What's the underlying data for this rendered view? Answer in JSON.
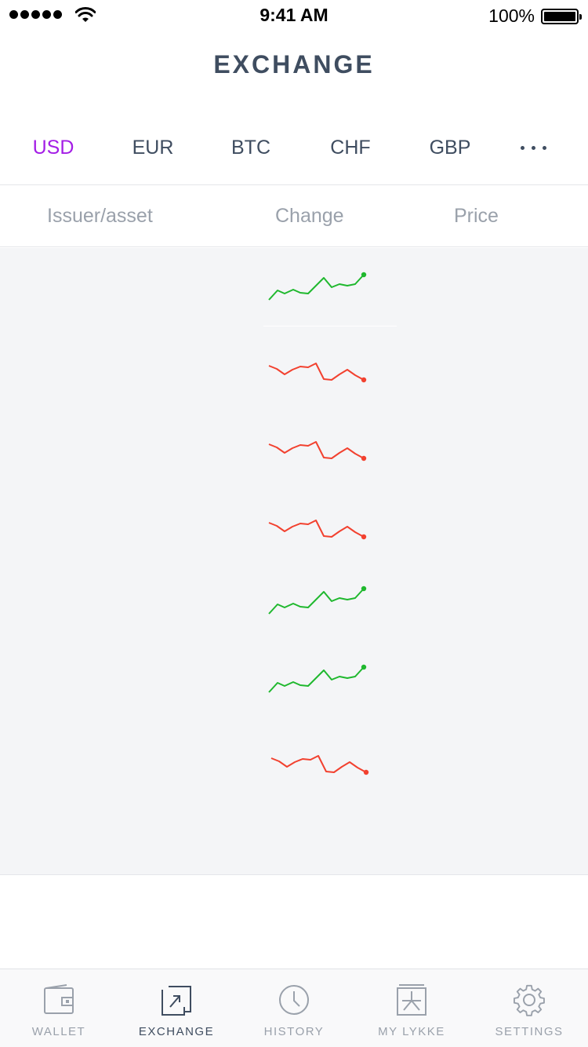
{
  "status_bar": {
    "time": "9:41 AM",
    "battery": "100%"
  },
  "header": {
    "title": "EXCHANGE"
  },
  "currency_tabs": [
    "USD",
    "EUR",
    "BTC",
    "CHF",
    "GBP"
  ],
  "active_currency": "USD",
  "more_icon": "more-dots-icon",
  "columns": {
    "issuer": "Issuer/asset",
    "change": "Change",
    "price": "Price"
  },
  "rows": [
    {
      "trend": "up"
    },
    {
      "trend": "down"
    },
    {
      "trend": "down"
    },
    {
      "trend": "down"
    },
    {
      "trend": "up"
    },
    {
      "trend": "up"
    },
    {
      "trend": "down"
    }
  ],
  "colors": {
    "accent": "#a41ee6",
    "up": "#1fb82e",
    "down": "#f2412f",
    "text": "#3f4d60",
    "muted": "#9aa1ab"
  },
  "tab_bar": [
    {
      "label": "WALLET",
      "icon": "wallet-icon"
    },
    {
      "label": "EXCHANGE",
      "icon": "exchange-icon",
      "active": true
    },
    {
      "label": "HISTORY",
      "icon": "clock-icon"
    },
    {
      "label": "MY LYKKE",
      "icon": "lykke-icon"
    },
    {
      "label": "SETTINGS",
      "icon": "gear-icon"
    }
  ]
}
